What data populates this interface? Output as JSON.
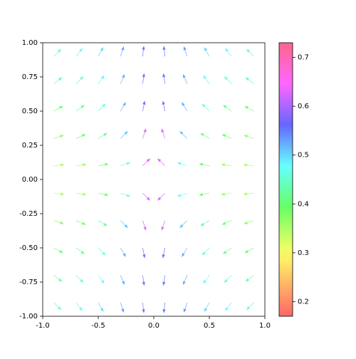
{
  "chart_data": {
    "type": "quiver",
    "x": [
      -0.9,
      -0.7,
      -0.5,
      -0.3,
      -0.1,
      0.1,
      0.3,
      0.5,
      0.7,
      0.9
    ],
    "y": [
      -0.9,
      -0.7,
      -0.5,
      -0.3,
      -0.1,
      0.1,
      0.3,
      0.5,
      0.7,
      0.9
    ],
    "u": [
      [
        0.9,
        0.7,
        0.5,
        0.3,
        0.1,
        -0.1,
        -0.3,
        -0.5,
        -0.7,
        -0.9
      ],
      [
        0.9,
        0.7,
        0.5,
        0.3,
        0.1,
        -0.1,
        -0.3,
        -0.5,
        -0.7,
        -0.9
      ],
      [
        0.9,
        0.7,
        0.5,
        0.3,
        0.1,
        -0.1,
        -0.3,
        -0.5,
        -0.7,
        -0.9
      ],
      [
        0.9,
        0.7,
        0.5,
        0.3,
        0.1,
        -0.1,
        -0.3,
        -0.5,
        -0.7,
        -0.9
      ],
      [
        0.9,
        0.7,
        0.5,
        0.3,
        0.1,
        -0.1,
        -0.3,
        -0.5,
        -0.7,
        -0.9
      ],
      [
        0.9,
        0.7,
        0.5,
        0.3,
        0.1,
        -0.1,
        -0.3,
        -0.5,
        -0.7,
        -0.9
      ],
      [
        0.9,
        0.7,
        0.5,
        0.3,
        0.1,
        -0.1,
        -0.3,
        -0.5,
        -0.7,
        -0.9
      ],
      [
        0.9,
        0.7,
        0.5,
        0.3,
        0.1,
        -0.1,
        -0.3,
        -0.5,
        -0.7,
        -0.9
      ],
      [
        0.9,
        0.7,
        0.5,
        0.3,
        0.1,
        -0.1,
        -0.3,
        -0.5,
        -0.7,
        -0.9
      ],
      [
        0.9,
        0.7,
        0.5,
        0.3,
        0.1,
        -0.1,
        -0.3,
        -0.5,
        -0.7,
        -0.9
      ]
    ],
    "v": [
      [
        -0.9,
        -0.9,
        -0.9,
        -0.9,
        -0.9,
        -0.9,
        -0.9,
        -0.9,
        -0.9,
        -0.9
      ],
      [
        -0.7,
        -0.7,
        -0.7,
        -0.7,
        -0.7,
        -0.7,
        -0.7,
        -0.7,
        -0.7,
        -0.7
      ],
      [
        -0.5,
        -0.5,
        -0.5,
        -0.5,
        -0.5,
        -0.5,
        -0.5,
        -0.5,
        -0.5,
        -0.5
      ],
      [
        -0.3,
        -0.3,
        -0.3,
        -0.3,
        -0.3,
        -0.3,
        -0.3,
        -0.3,
        -0.3,
        -0.3
      ],
      [
        -0.1,
        -0.1,
        -0.1,
        -0.1,
        -0.1,
        -0.1,
        -0.1,
        -0.1,
        -0.1,
        -0.1
      ],
      [
        0.1,
        0.1,
        0.1,
        0.1,
        0.1,
        0.1,
        0.1,
        0.1,
        0.1,
        0.1
      ],
      [
        0.3,
        0.3,
        0.3,
        0.3,
        0.3,
        0.3,
        0.3,
        0.3,
        0.3,
        0.3
      ],
      [
        0.5,
        0.5,
        0.5,
        0.5,
        0.5,
        0.5,
        0.5,
        0.5,
        0.5,
        0.5
      ],
      [
        0.7,
        0.7,
        0.7,
        0.7,
        0.7,
        0.7,
        0.7,
        0.7,
        0.7,
        0.7
      ],
      [
        0.9,
        0.9,
        0.9,
        0.9,
        0.9,
        0.9,
        0.9,
        0.9,
        0.9,
        0.9
      ]
    ],
    "c": [
      [
        0.45,
        0.48,
        0.5,
        0.53,
        0.55,
        0.55,
        0.53,
        0.5,
        0.48,
        0.45
      ],
      [
        0.43,
        0.45,
        0.48,
        0.52,
        0.55,
        0.55,
        0.52,
        0.48,
        0.45,
        0.43
      ],
      [
        0.4,
        0.42,
        0.46,
        0.52,
        0.58,
        0.58,
        0.52,
        0.46,
        0.42,
        0.4
      ],
      [
        0.37,
        0.39,
        0.42,
        0.51,
        0.63,
        0.63,
        0.51,
        0.42,
        0.39,
        0.37
      ],
      [
        0.35,
        0.36,
        0.39,
        0.47,
        0.63,
        0.63,
        0.47,
        0.39,
        0.36,
        0.35
      ],
      [
        0.35,
        0.36,
        0.39,
        0.47,
        0.63,
        0.63,
        0.47,
        0.39,
        0.36,
        0.35
      ],
      [
        0.37,
        0.39,
        0.42,
        0.51,
        0.63,
        0.63,
        0.51,
        0.42,
        0.39,
        0.37
      ],
      [
        0.4,
        0.42,
        0.46,
        0.52,
        0.58,
        0.58,
        0.52,
        0.46,
        0.42,
        0.4
      ],
      [
        0.43,
        0.45,
        0.48,
        0.52,
        0.55,
        0.55,
        0.52,
        0.48,
        0.45,
        0.43
      ],
      [
        0.45,
        0.48,
        0.5,
        0.53,
        0.55,
        0.55,
        0.53,
        0.5,
        0.48,
        0.45
      ]
    ],
    "xlim": [
      -1,
      1
    ],
    "xticks": [
      {
        "value": -1,
        "label": "-1.0"
      },
      {
        "value": -0.5,
        "label": "-0.5"
      },
      {
        "value": 0,
        "label": "0.0"
      },
      {
        "value": 0.5,
        "label": "0.5"
      },
      {
        "value": 1,
        "label": "1.0"
      }
    ],
    "ylim": [
      -1,
      1
    ],
    "yticks": [
      {
        "value": -1,
        "label": "-1.00"
      },
      {
        "value": -0.75,
        "label": "-0.75"
      },
      {
        "value": -0.5,
        "label": "-0.50"
      },
      {
        "value": -0.25,
        "label": "-0.25"
      },
      {
        "value": 0,
        "label": "0.00"
      },
      {
        "value": 0.25,
        "label": "0.25"
      },
      {
        "value": 0.5,
        "label": "0.50"
      },
      {
        "value": 0.75,
        "label": "0.75"
      },
      {
        "value": 1,
        "label": "1.00"
      }
    ],
    "clim": [
      0.17,
      0.73
    ],
    "cticks": [
      0.2,
      0.3,
      0.4,
      0.5,
      0.6,
      0.7
    ],
    "colormap": "gist_rainbow",
    "alpha": 0.6
  }
}
